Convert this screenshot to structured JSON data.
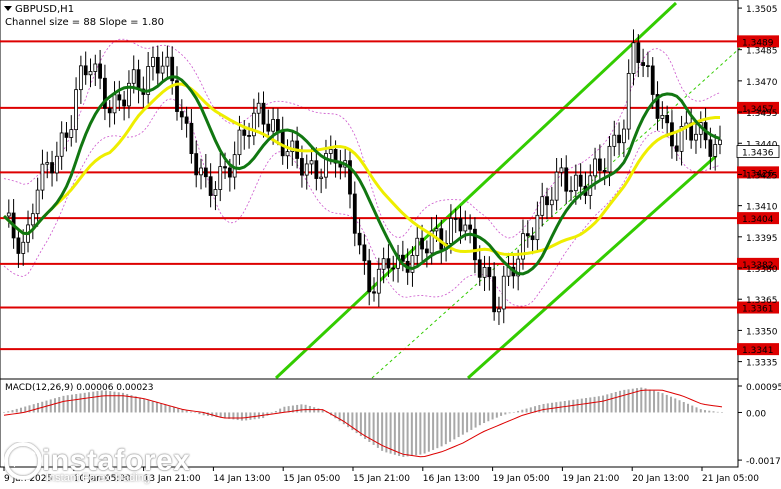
{
  "chart_title": "GBPUSD,H1",
  "channel_info": "Channel size = 88 Slope = 1.80",
  "macd_label": "MACD(12,26,9) 0.00006 0.00023",
  "logo": {
    "name": "instaforex",
    "tagline": "Instant Forex Trading"
  },
  "colors": {
    "level_line": "#dd0000",
    "level_box": "#dd0000",
    "channel": "#33cc00",
    "ma_fast": "#117711",
    "ma_slow": "#eeee00",
    "envelope": "#cc55cc",
    "candle": "#000000",
    "macd_hist": "#a8a8a8",
    "macd_signal": "#dd0000"
  },
  "chart_data": {
    "type": "candlestick",
    "symbol": "GBPUSD",
    "timeframe": "H1",
    "ylim": [
      1.333,
      1.3506
    ],
    "y_ticks": [
      "1.3505",
      "1.3485",
      "1.3470",
      "1.3455",
      "1.3440",
      "1.3425",
      "1.3410",
      "1.3395",
      "1.3380",
      "1.3365",
      "1.3350",
      "1.3335"
    ],
    "x_ticks": [
      "9 Jan 2025",
      "10 Jan 05:00",
      "13 Jan 21:00",
      "14 Jan 13:00",
      "15 Jan 05:00",
      "15 Jan 21:00",
      "16 Jan 13:00",
      "19 Jan 05:00",
      "19 Jan 21:00",
      "20 Jan 13:00",
      "21 Jan 05:00"
    ],
    "current_price": "1.3436",
    "levels": [
      {
        "label": "1.3489",
        "value": 1.3489
      },
      {
        "label": "1.3457",
        "value": 1.3457
      },
      {
        "label": "1.3426",
        "value": 1.3426
      },
      {
        "label": "1.3404",
        "value": 1.3404
      },
      {
        "label": "1.3382",
        "value": 1.3382
      },
      {
        "label": "1.3361",
        "value": 1.3361
      },
      {
        "label": "1.3341",
        "value": 1.3341
      }
    ],
    "close_path": [
      1.3405,
      1.3395,
      1.3388,
      1.342,
      1.3428,
      1.3435,
      1.3445,
      1.347,
      1.348,
      1.3468,
      1.3455,
      1.3462,
      1.347,
      1.3468,
      1.3478,
      1.348,
      1.3465,
      1.3445,
      1.343,
      1.3418,
      1.3422,
      1.3428,
      1.344,
      1.345,
      1.3455,
      1.3448,
      1.344,
      1.3435,
      1.343,
      1.3425,
      1.343,
      1.3436,
      1.3425,
      1.3398,
      1.337,
      1.3375,
      1.3385,
      1.338,
      1.3385,
      1.339,
      1.3395,
      1.3393,
      1.34,
      1.3405,
      1.3385,
      1.3378,
      1.336,
      1.3375,
      1.3385,
      1.3395,
      1.3405,
      1.3415,
      1.3425,
      1.342,
      1.3418,
      1.3425,
      1.343,
      1.3438,
      1.345,
      1.349,
      1.3475,
      1.346,
      1.3445,
      1.344,
      1.3448,
      1.3445,
      1.344,
      1.3436
    ],
    "macd": {
      "ylim": [
        -0.00185,
        0.00095
      ],
      "y_ticks": [
        "0.00095",
        "0.00",
        "-0.00171"
      ],
      "histogram_path": [
        0.0,
        0.0002,
        0.0004,
        0.0006,
        0.0007,
        0.0008,
        0.0007,
        0.0005,
        0.0003,
        0.0001,
        -0.0001,
        -0.0002,
        -0.0003,
        -0.0002,
        0.0002,
        0.0003,
        0.0001,
        -0.0004,
        -0.0009,
        -0.0014,
        -0.0016,
        -0.0015,
        -0.0012,
        -0.0008,
        -0.0004,
        -0.0001,
        0.0001,
        0.0003,
        0.0004,
        0.0005,
        0.0006,
        0.0008,
        0.0009,
        0.0007,
        0.0004,
        0.0001,
        0.0
      ],
      "signal_path": [
        -0.0001,
        0.0,
        0.0002,
        0.0004,
        0.0005,
        0.0006,
        0.0006,
        0.0005,
        0.0003,
        0.0001,
        0.0,
        -0.0002,
        -0.0002,
        -0.0001,
        0.0,
        0.0001,
        0.0001,
        -0.0003,
        -0.0008,
        -0.0012,
        -0.0015,
        -0.0016,
        -0.0014,
        -0.0011,
        -0.0007,
        -0.0004,
        -0.0001,
        0.0001,
        0.0002,
        0.0003,
        0.0004,
        0.0006,
        0.0008,
        0.0008,
        0.0006,
        0.0003,
        0.0002
      ]
    }
  }
}
